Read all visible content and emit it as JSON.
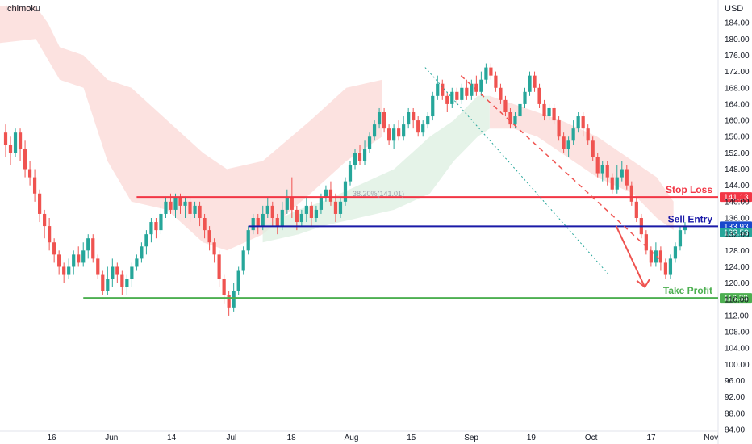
{
  "indicator_label": "Ichimoku",
  "currency_label": "USD",
  "fib_label": "38.20%(141.01)",
  "colors": {
    "up": "#26a69a",
    "down": "#ef5350",
    "stop": "#f23645",
    "entry": "#1a1aa8",
    "entry_badge": "#1848cc",
    "profit": "#4caf50",
    "cloud_bear": "#fbd8d6",
    "cloud_bull": "#dcefe0",
    "trend": "#ef5350",
    "trend_dotted": "#26a69a"
  },
  "chart_data": {
    "type": "candlestick",
    "ylim": [
      84,
      188
    ],
    "y_ticks": [
      "84.00",
      "88.00",
      "92.00",
      "96.00",
      "100.00",
      "104.00",
      "108.00",
      "112.00",
      "116.00",
      "120.00",
      "124.00",
      "128.00",
      "132.00",
      "136.00",
      "140.00",
      "144.00",
      "148.00",
      "152.00",
      "156.00",
      "160.00",
      "164.00",
      "168.00",
      "172.00",
      "176.00",
      "180.00",
      "184.00"
    ],
    "x_ticks": [
      "16",
      "Jun",
      "14",
      "Jul",
      "18",
      "Aug",
      "15",
      "Sep",
      "19",
      "Oct",
      "17",
      "Nov"
    ],
    "levels": [
      {
        "name": "Stop Loss",
        "value": 141.13,
        "label": "141.13"
      },
      {
        "name": "Sell Entry",
        "value": 133.93,
        "label": "133.93"
      },
      {
        "name": "Take Profit",
        "value": 116.33,
        "label": "116.33"
      }
    ],
    "last_price": {
      "value": 133.53,
      "label": "133.53"
    },
    "fib_level": 141.01,
    "candles": [
      [
        157,
        154,
        159,
        151
      ],
      [
        154,
        152,
        156,
        149
      ],
      [
        152,
        157,
        158,
        151
      ],
      [
        157,
        153,
        158,
        150
      ],
      [
        153,
        148,
        155,
        146
      ],
      [
        148,
        146,
        150,
        144
      ],
      [
        146,
        142,
        148,
        140
      ],
      [
        142,
        137,
        143,
        135
      ],
      [
        137,
        134,
        138,
        131
      ],
      [
        134,
        130,
        136,
        128
      ],
      [
        130,
        127,
        131,
        125
      ],
      [
        127,
        124,
        128,
        122
      ],
      [
        124,
        122,
        125,
        120
      ],
      [
        122,
        124,
        126,
        121
      ],
      [
        124,
        127,
        128,
        122
      ],
      [
        127,
        125,
        129,
        124
      ],
      [
        125,
        128,
        130,
        124
      ],
      [
        128,
        131,
        132,
        126
      ],
      [
        131,
        126,
        132,
        125
      ],
      [
        126,
        122,
        127,
        121
      ],
      [
        122,
        118,
        123,
        117
      ],
      [
        118,
        121,
        124,
        117
      ],
      [
        121,
        124,
        126,
        119
      ],
      [
        124,
        122,
        125,
        120
      ],
      [
        122,
        119,
        123,
        117
      ],
      [
        119,
        121,
        122,
        117
      ],
      [
        121,
        124,
        125,
        119
      ],
      [
        124,
        126,
        127,
        123
      ],
      [
        126,
        129,
        130,
        125
      ],
      [
        129,
        132,
        133,
        127
      ],
      [
        132,
        135,
        136,
        130
      ],
      [
        135,
        133,
        136,
        131
      ],
      [
        133,
        137,
        139,
        132
      ],
      [
        137,
        140,
        141,
        136
      ],
      [
        140,
        138,
        142,
        137
      ],
      [
        138,
        141,
        142,
        136
      ],
      [
        141,
        139,
        142,
        137
      ],
      [
        139,
        140,
        141,
        136
      ],
      [
        140,
        137,
        141,
        135
      ],
      [
        137,
        139,
        140,
        136
      ],
      [
        139,
        136,
        140,
        134
      ],
      [
        136,
        133,
        137,
        131
      ],
      [
        133,
        130,
        134,
        128
      ],
      [
        130,
        127,
        131,
        125
      ],
      [
        127,
        121,
        128,
        119
      ],
      [
        121,
        117,
        122,
        115
      ],
      [
        117,
        114,
        118,
        112
      ],
      [
        114,
        118,
        120,
        113
      ],
      [
        118,
        123,
        124,
        117
      ],
      [
        123,
        128,
        129,
        122
      ],
      [
        128,
        133,
        134,
        127
      ],
      [
        133,
        136,
        137,
        132
      ],
      [
        136,
        134,
        137,
        132
      ],
      [
        134,
        137,
        139,
        133
      ],
      [
        137,
        139,
        141,
        136
      ],
      [
        139,
        136,
        140,
        134
      ],
      [
        136,
        134,
        137,
        132
      ],
      [
        134,
        138,
        140,
        133
      ],
      [
        138,
        141,
        143,
        137
      ],
      [
        141,
        138,
        146,
        136
      ],
      [
        138,
        135,
        139,
        133
      ],
      [
        135,
        137,
        138,
        134
      ],
      [
        137,
        139,
        141,
        135
      ],
      [
        139,
        136,
        140,
        134
      ],
      [
        136,
        138,
        139,
        135
      ],
      [
        138,
        141,
        142,
        137
      ],
      [
        141,
        143,
        144,
        140
      ],
      [
        143,
        140,
        145,
        139
      ],
      [
        140,
        137,
        142,
        135
      ],
      [
        137,
        140,
        141,
        136
      ],
      [
        140,
        145,
        146,
        139
      ],
      [
        145,
        149,
        150,
        144
      ],
      [
        149,
        152,
        153,
        148
      ],
      [
        152,
        150,
        154,
        149
      ],
      [
        150,
        153,
        155,
        149
      ],
      [
        153,
        156,
        157,
        152
      ],
      [
        156,
        159,
        160,
        155
      ],
      [
        159,
        162,
        163,
        158
      ],
      [
        162,
        158,
        163,
        157
      ],
      [
        158,
        155,
        159,
        154
      ],
      [
        155,
        158,
        159,
        153
      ],
      [
        158,
        156,
        160,
        155
      ],
      [
        156,
        159,
        161,
        155
      ],
      [
        159,
        162,
        163,
        158
      ],
      [
        162,
        160,
        163,
        158
      ],
      [
        160,
        157,
        161,
        156
      ],
      [
        157,
        159,
        160,
        156
      ],
      [
        159,
        161,
        162,
        158
      ],
      [
        161,
        166,
        167,
        160
      ],
      [
        166,
        169,
        171,
        165
      ],
      [
        169,
        166,
        170,
        165
      ],
      [
        166,
        164,
        167,
        162
      ],
      [
        164,
        167,
        168,
        163
      ],
      [
        167,
        165,
        168,
        164
      ],
      [
        165,
        168,
        169,
        164
      ],
      [
        168,
        166,
        170,
        165
      ],
      [
        166,
        169,
        170,
        165
      ],
      [
        169,
        167,
        171,
        166
      ],
      [
        167,
        170,
        172,
        166
      ],
      [
        170,
        173,
        174,
        169
      ],
      [
        173,
        171,
        174,
        170
      ],
      [
        171,
        168,
        172,
        167
      ],
      [
        168,
        165,
        169,
        164
      ],
      [
        165,
        162,
        166,
        161
      ],
      [
        162,
        159,
        163,
        158
      ],
      [
        159,
        161,
        162,
        158
      ],
      [
        161,
        164,
        165,
        160
      ],
      [
        164,
        167,
        168,
        163
      ],
      [
        167,
        171,
        172,
        166
      ],
      [
        171,
        168,
        172,
        167
      ],
      [
        168,
        164,
        169,
        163
      ],
      [
        164,
        161,
        165,
        160
      ],
      [
        161,
        163,
        164,
        160
      ],
      [
        163,
        160,
        164,
        159
      ],
      [
        160,
        156,
        161,
        155
      ],
      [
        156,
        153,
        157,
        152
      ],
      [
        153,
        155,
        156,
        151
      ],
      [
        155,
        158,
        160,
        154
      ],
      [
        158,
        161,
        162,
        157
      ],
      [
        161,
        158,
        162,
        156
      ],
      [
        158,
        155,
        159,
        154
      ],
      [
        155,
        151,
        156,
        150
      ],
      [
        151,
        147,
        152,
        146
      ],
      [
        147,
        149,
        150,
        145
      ],
      [
        149,
        146,
        150,
        144
      ],
      [
        146,
        143,
        147,
        142
      ],
      [
        143,
        146,
        149,
        142
      ],
      [
        146,
        148,
        150,
        145
      ],
      [
        148,
        144,
        149,
        143
      ],
      [
        144,
        140,
        145,
        139
      ],
      [
        140,
        136,
        141,
        135
      ],
      [
        136,
        132,
        137,
        131
      ],
      [
        132,
        128,
        133,
        127
      ],
      [
        128,
        125,
        129,
        124
      ],
      [
        125,
        128,
        130,
        124
      ],
      [
        128,
        125,
        129,
        123
      ],
      [
        125,
        122,
        126,
        121
      ],
      [
        122,
        126,
        127,
        121
      ],
      [
        126,
        129,
        130,
        125
      ],
      [
        129,
        133,
        134,
        128
      ],
      [
        133,
        134,
        135,
        132
      ]
    ],
    "cloud_bear_bands": [
      [
        [
          0,
          188,
          179
        ],
        [
          15,
          188,
          180
        ],
        [
          20,
          184,
          175
        ],
        [
          25,
          178,
          170
        ],
        [
          35,
          176,
          168
        ],
        [
          45,
          170,
          150
        ],
        [
          55,
          168,
          140
        ],
        [
          70,
          160,
          138
        ],
        [
          85,
          152,
          130
        ],
        [
          95,
          148,
          128
        ],
        [
          110,
          150,
          132
        ],
        [
          130,
          160,
          142
        ],
        [
          145,
          168,
          150
        ],
        [
          160,
          170,
          156
        ]
      ],
      [
        [
          205,
          166,
          158
        ],
        [
          215,
          164,
          158
        ],
        [
          225,
          162,
          156
        ],
        [
          235,
          160,
          152
        ],
        [
          250,
          156,
          146
        ],
        [
          265,
          150,
          142
        ],
        [
          275,
          146,
          136
        ],
        [
          282,
          140,
          133
        ]
      ]
    ],
    "cloud_bull_band": [
      [
        110,
        134,
        130
      ],
      [
        125,
        138,
        132
      ],
      [
        135,
        140,
        134
      ],
      [
        150,
        144,
        136
      ],
      [
        165,
        148,
        138
      ],
      [
        180,
        156,
        142
      ],
      [
        190,
        160,
        150
      ],
      [
        200,
        166,
        156
      ],
      [
        205,
        166,
        158
      ]
    ],
    "trend_solid": [
      [
        193,
        171
      ],
      [
        276,
        126
      ]
    ],
    "trend_dotted": [
      [
        178,
        173
      ],
      [
        255,
        122
      ]
    ],
    "forecast_arrow": [
      [
        258,
        134
      ],
      [
        270,
        119
      ]
    ]
  }
}
